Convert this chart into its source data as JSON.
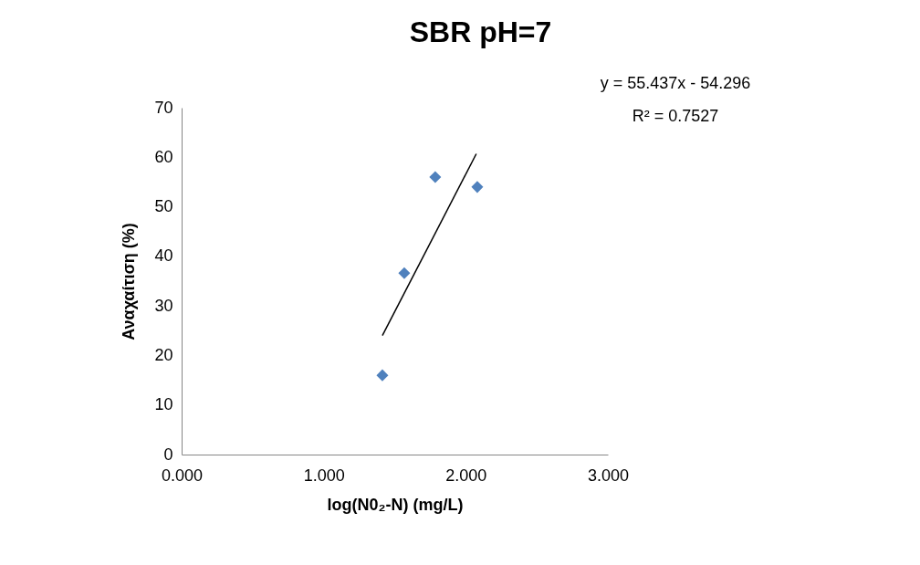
{
  "chart_data": {
    "type": "scatter",
    "title": "SBR pH=7",
    "xlabel": "log(N0₂-N) (mg/L)",
    "ylabel": "Αναχαίτιση  (%)",
    "annotations": [
      "y = 55.437x - 54.296",
      "R² = 0.7527"
    ],
    "series": [
      {
        "color": "#4f81bd",
        "marker": "diamond",
        "x": [
          1.413,
          1.567,
          1.785,
          2.081
        ],
        "values": [
          16.0,
          36.6,
          56.0,
          54.0
        ]
      },
      {
        "type": "line",
        "color": "#000000",
        "marker": "none",
        "x": [
          1.413,
          2.074
        ],
        "values": [
          24.0,
          60.7
        ]
      }
    ],
    "xlim": [
      0,
      3
    ],
    "xticks": [
      {
        "value": 0,
        "label": "0.000"
      },
      {
        "value": 1,
        "label": "1.000"
      },
      {
        "value": 2,
        "label": "2.000"
      },
      {
        "value": 3,
        "label": "3.000"
      }
    ],
    "ylim": [
      0,
      70
    ],
    "yticks": [
      0,
      10,
      20,
      30,
      40,
      50,
      60,
      70
    ]
  }
}
